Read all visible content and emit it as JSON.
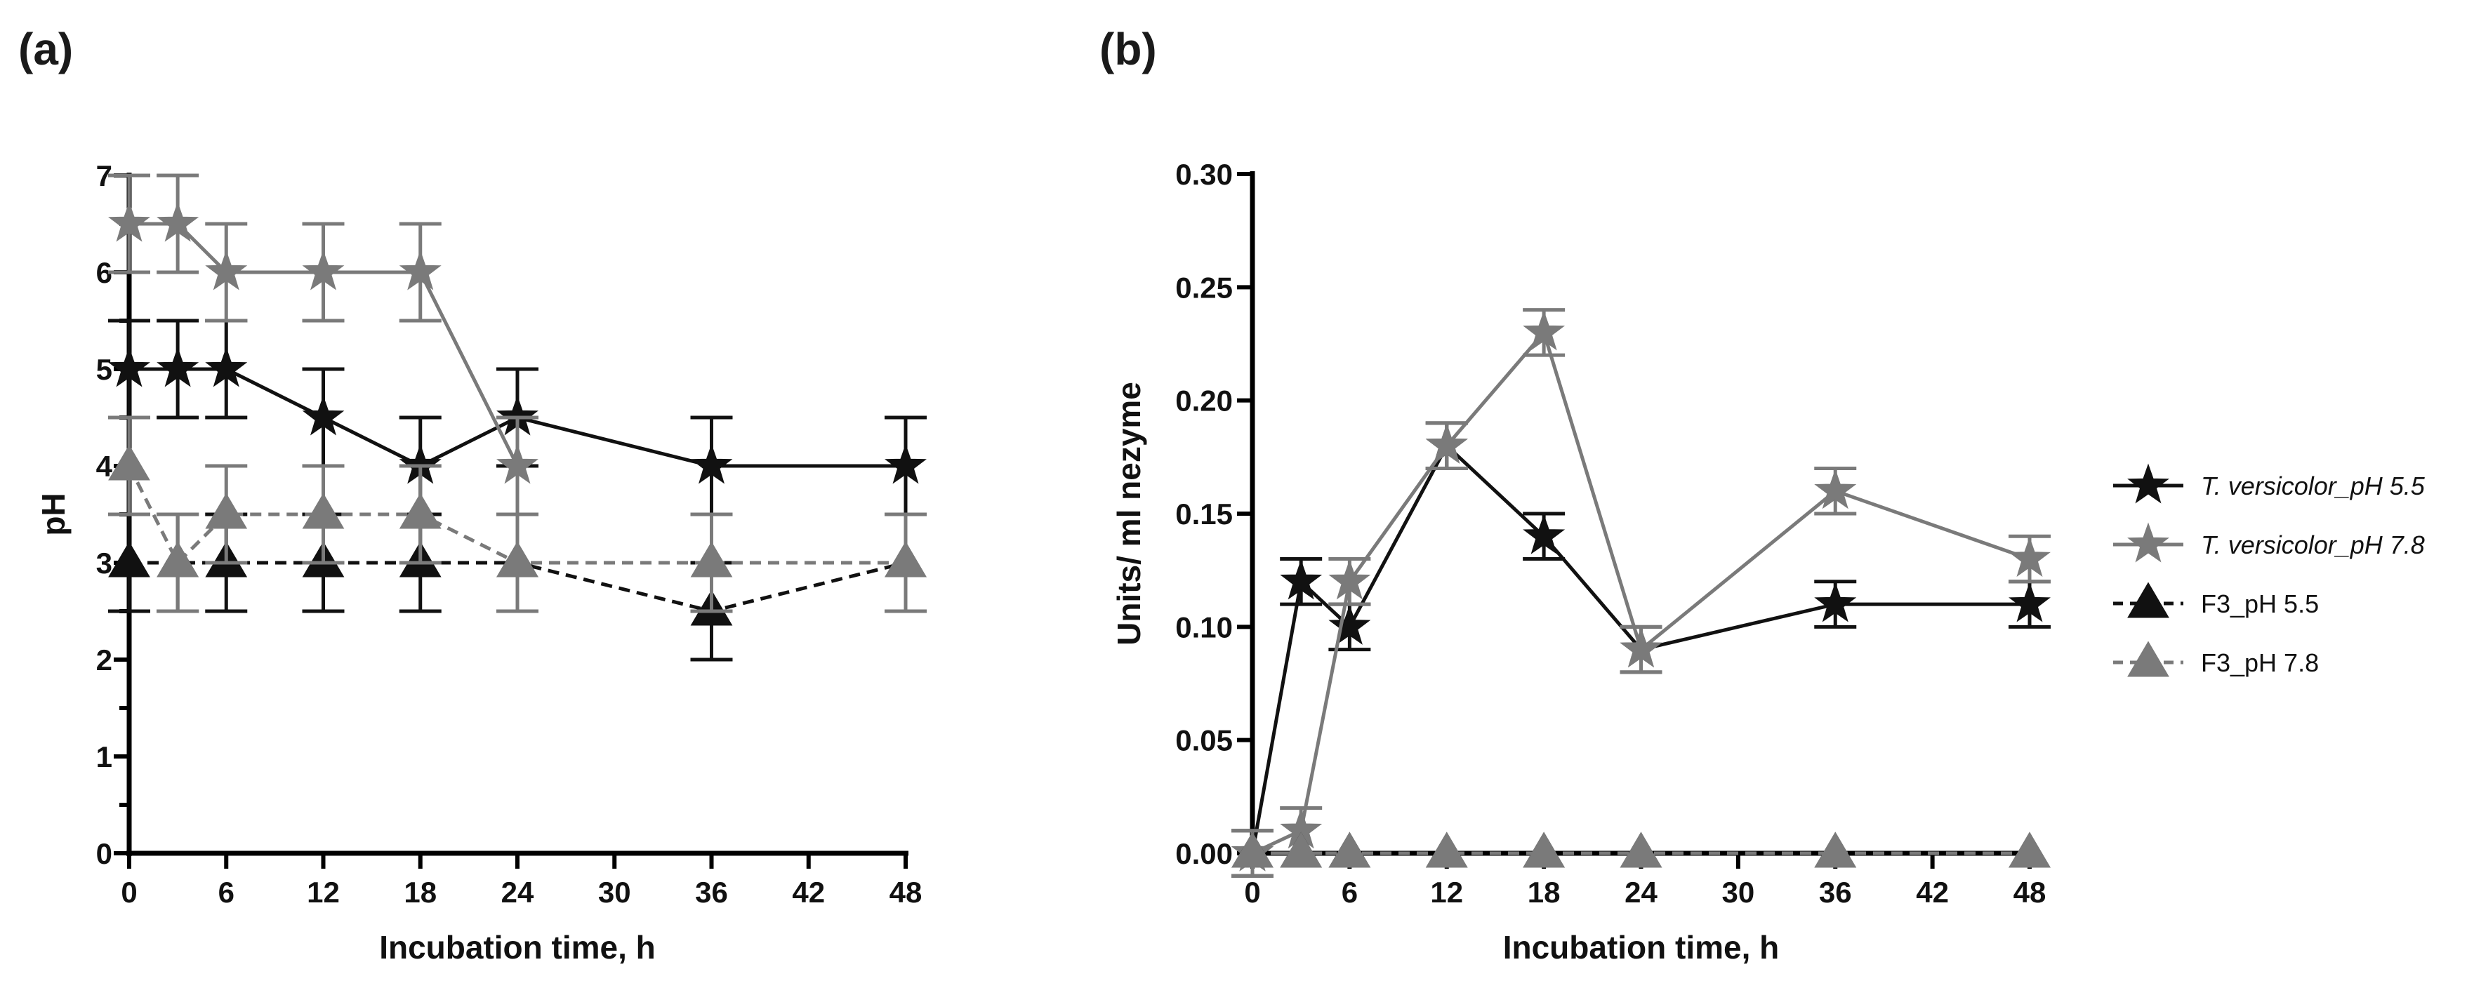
{
  "chart_data": [
    {
      "type": "line",
      "panel_label": "(a)",
      "title": "",
      "xlabel": "Incubation time, h",
      "ylabel": "pH",
      "xlim": [
        0,
        48
      ],
      "ylim": [
        0,
        7
      ],
      "xticks": [
        0,
        6,
        12,
        18,
        24,
        30,
        36,
        42,
        48
      ],
      "xtick_labels": [
        "0",
        "6",
        "12",
        "18",
        "24",
        "30",
        "36",
        "42",
        "48"
      ],
      "yticks": [
        0,
        1,
        2,
        3,
        4,
        5,
        6,
        7
      ],
      "ytick_labels": [
        "0",
        "1",
        "2",
        "3",
        "4",
        "5",
        "6",
        "7"
      ],
      "series": [
        {
          "name": "T. versicolor_pH 5.5",
          "color": "#111111",
          "marker": "star",
          "dash": "solid",
          "x": [
            0,
            3,
            6,
            12,
            18,
            24,
            36,
            48
          ],
          "y": [
            5,
            5,
            5,
            4.5,
            4,
            4.5,
            4,
            4
          ],
          "err": [
            0.5,
            0.5,
            0.5,
            0.5,
            0.5,
            0.5,
            0.5,
            0.5
          ]
        },
        {
          "name": "T. versicolor_pH 7.8",
          "color": "#7a7a7a",
          "marker": "star",
          "dash": "solid",
          "x": [
            0,
            3,
            6,
            12,
            18,
            24
          ],
          "y": [
            6.5,
            6.5,
            6,
            6,
            6,
            4
          ],
          "err": [
            0.5,
            0.5,
            0.5,
            0.5,
            0.5,
            0.5
          ]
        },
        {
          "name": "F3_pH 5.5",
          "color": "#111111",
          "marker": "triangle",
          "dash": "dashed",
          "x": [
            0,
            3,
            6,
            12,
            18,
            24,
            36,
            48
          ],
          "y": [
            3,
            3,
            3,
            3,
            3,
            3,
            2.5,
            3
          ],
          "err": [
            0.5,
            0.5,
            0.5,
            0.5,
            0.5,
            0.5,
            0.5,
            0.5
          ]
        },
        {
          "name": "F3_pH 7.8",
          "color": "#7a7a7a",
          "marker": "triangle",
          "dash": "dashed",
          "x": [
            0,
            3,
            6,
            12,
            18,
            24,
            36,
            48
          ],
          "y": [
            4,
            3,
            3.5,
            3.5,
            3.5,
            3,
            3,
            3
          ],
          "err": [
            0.5,
            0.5,
            0.5,
            0.5,
            0.5,
            0.5,
            0.5,
            0.5
          ]
        }
      ]
    },
    {
      "type": "line",
      "panel_label": "(b)",
      "title": "",
      "xlabel": "Incubation time, h",
      "ylabel": "Units/ ml nezyme",
      "xlim": [
        0,
        48
      ],
      "ylim": [
        0,
        0.3
      ],
      "xticks": [
        0,
        6,
        12,
        18,
        24,
        30,
        36,
        42,
        48
      ],
      "xtick_labels": [
        "0",
        "6",
        "12",
        "18",
        "24",
        "30",
        "36",
        "42",
        "48"
      ],
      "yticks": [
        0,
        0.05,
        0.1,
        0.15,
        0.2,
        0.25,
        0.3
      ],
      "ytick_labels": [
        "0.00",
        "0.05",
        "0.10",
        "0.15",
        "0.20",
        "0.25",
        "0.30"
      ],
      "series": [
        {
          "name": "T. versicolor_pH 5.5",
          "color": "#111111",
          "marker": "star",
          "dash": "solid",
          "x": [
            0,
            3,
            6,
            12,
            18,
            24,
            36,
            48
          ],
          "y": [
            0,
            0.12,
            0.1,
            0.18,
            0.14,
            0.09,
            0.11,
            0.11
          ],
          "err": [
            0.01,
            0.01,
            0.01,
            0.01,
            0.01,
            0.01,
            0.01,
            0.01
          ]
        },
        {
          "name": "T. versicolor_pH 7.8",
          "color": "#7a7a7a",
          "marker": "star",
          "dash": "solid",
          "x": [
            0,
            3,
            6,
            12,
            18,
            24,
            36,
            48
          ],
          "y": [
            0,
            0.01,
            0.12,
            0.18,
            0.23,
            0.09,
            0.16,
            0.13
          ],
          "err": [
            0.01,
            0.01,
            0.01,
            0.01,
            0.01,
            0.01,
            0.01,
            0.01
          ]
        },
        {
          "name": "F3_pH 5.5",
          "color": "#111111",
          "marker": "triangle",
          "dash": "dashed",
          "x": [
            0,
            3,
            6,
            12,
            18,
            24,
            36,
            48
          ],
          "y": [
            0,
            0,
            0,
            0,
            0,
            0,
            0,
            0
          ],
          "err": [
            0,
            0,
            0,
            0,
            0,
            0,
            0,
            0
          ]
        },
        {
          "name": "F3_pH 7.8",
          "color": "#7a7a7a",
          "marker": "triangle",
          "dash": "dashed",
          "x": [
            0,
            3,
            6,
            12,
            18,
            24,
            36,
            48
          ],
          "y": [
            0,
            0,
            0,
            0,
            0,
            0,
            0,
            0
          ],
          "err": [
            0,
            0,
            0,
            0,
            0,
            0,
            0,
            0
          ]
        }
      ]
    }
  ],
  "legend": {
    "placement": "right of panel (b)",
    "entries": [
      {
        "label": "T. versicolor_pH 5.5",
        "italic": true,
        "color": "#111111",
        "marker": "star",
        "dash": "solid"
      },
      {
        "label": "T. versicolor_pH 7.8",
        "italic": true,
        "color": "#7a7a7a",
        "marker": "star",
        "dash": "solid"
      },
      {
        "label": "F3_pH 5.5",
        "italic": false,
        "color": "#111111",
        "marker": "triangle",
        "dash": "dashed"
      },
      {
        "label": "F3_pH 7.8",
        "italic": false,
        "color": "#7a7a7a",
        "marker": "triangle",
        "dash": "dashed"
      }
    ]
  }
}
